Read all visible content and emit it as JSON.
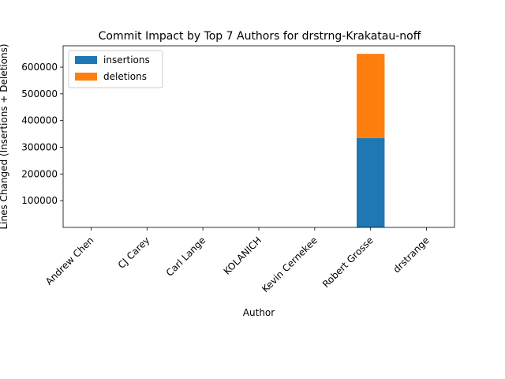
{
  "chart_data": {
    "type": "bar",
    "stacked": true,
    "title": "Commit Impact by Top 7 Authors for drstrng-Krakatau-noff",
    "xlabel": "Author",
    "ylabel": "Lines Changed (Insertions + Deletions)",
    "categories": [
      "Andrew Chen",
      "CJ Carey",
      "Carl Lange",
      "KOLANICH",
      "Kevin Cernekee",
      "Robert Grosse",
      "drstrange"
    ],
    "series": [
      {
        "name": "insertions",
        "color": "#1f77b4",
        "values": [
          10,
          5,
          2,
          3,
          20,
          335000,
          30
        ]
      },
      {
        "name": "deletions",
        "color": "#ff7f0e",
        "values": [
          5,
          2,
          1,
          1,
          10,
          315000,
          10
        ]
      }
    ],
    "ylim": [
      0,
      680000
    ],
    "yticks": [
      100000,
      200000,
      300000,
      400000,
      500000,
      600000
    ],
    "legend_position": "top-left",
    "grid": false
  }
}
